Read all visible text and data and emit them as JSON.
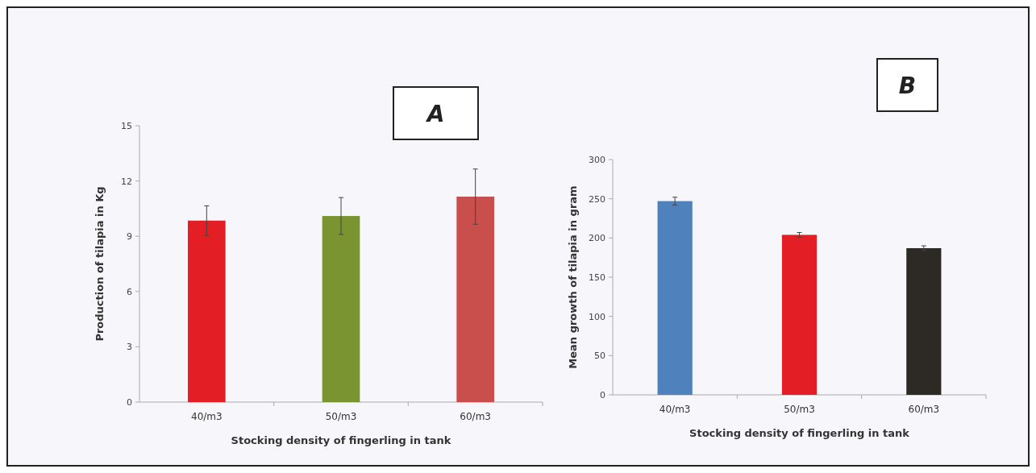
{
  "chart_data": [
    {
      "type": "bar",
      "title": "A",
      "xlabel": "Stocking density of fingerling in tank",
      "ylabel": "Production of tilapia in Kg",
      "categories": [
        "40/m3",
        "50/m3",
        "60/m3"
      ],
      "values": [
        9.85,
        10.1,
        11.15
      ],
      "errors": [
        0.8,
        1.0,
        1.5
      ],
      "colors": [
        "#e31e24",
        "#7a9431",
        "#c84f4c"
      ],
      "ylim": [
        0,
        15
      ],
      "yticks": [
        0,
        3,
        6,
        9,
        12,
        15
      ]
    },
    {
      "type": "bar",
      "title": "B",
      "xlabel": "Stocking density of fingerling in tank",
      "ylabel": "Mean growth  of tilapia in gram",
      "categories": [
        "40/m3",
        "50/m3",
        "60/m3"
      ],
      "values": [
        247,
        204,
        187
      ],
      "errors": [
        5,
        3,
        3
      ],
      "colors": [
        "#4f81bd",
        "#e31e24",
        "#2d2a26"
      ],
      "ylim": [
        0,
        300
      ],
      "yticks": [
        0,
        50,
        100,
        150,
        200,
        250,
        300
      ]
    }
  ]
}
